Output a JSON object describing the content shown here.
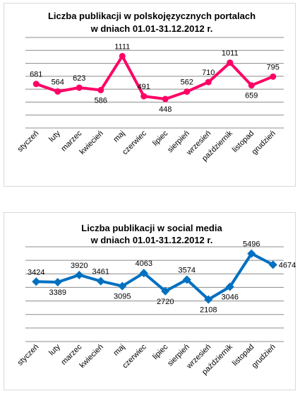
{
  "chart_data": [
    {
      "type": "line",
      "title": "Liczba publikacji w polskojęzycznych portalach",
      "subtitle": "w dniach 01.01-31.12.2012   r.",
      "categories": [
        "styczeń",
        "luty",
        "marzec",
        "kwiecień",
        "maj",
        "czerwiec",
        "lipiec",
        "sierpień",
        "wrzesień",
        "październik",
        "listopad",
        "grudzień"
      ],
      "series": [
        {
          "values": [
            681,
            564,
            623,
            586,
            1111,
            491,
            448,
            562,
            710,
            1011,
            659,
            795
          ]
        }
      ],
      "ylim": [
        0,
        1400
      ],
      "ystep": 200,
      "grid": true,
      "legend": "none",
      "color": "#ff0066",
      "marker": "circle"
    },
    {
      "type": "line",
      "title": "Liczba publikacji w social media",
      "subtitle": "w dniach 01.01-31.12.2012   r.",
      "categories": [
        "styczeń",
        "luty",
        "marzec",
        "kwiecień",
        "maj",
        "czerwiec",
        "lipiec",
        "sierpień",
        "wrzesień",
        "październik",
        "listopad",
        "grudzień"
      ],
      "series": [
        {
          "values": [
            3424,
            3389,
            3920,
            3461,
            3095,
            4063,
            2720,
            3574,
            2108,
            3046,
            5496,
            4674
          ]
        }
      ],
      "ylim": [
        -1000,
        6000
      ],
      "ystep": 1000,
      "grid": true,
      "legend": "none",
      "color": "#0070c0",
      "marker": "diamond"
    }
  ]
}
